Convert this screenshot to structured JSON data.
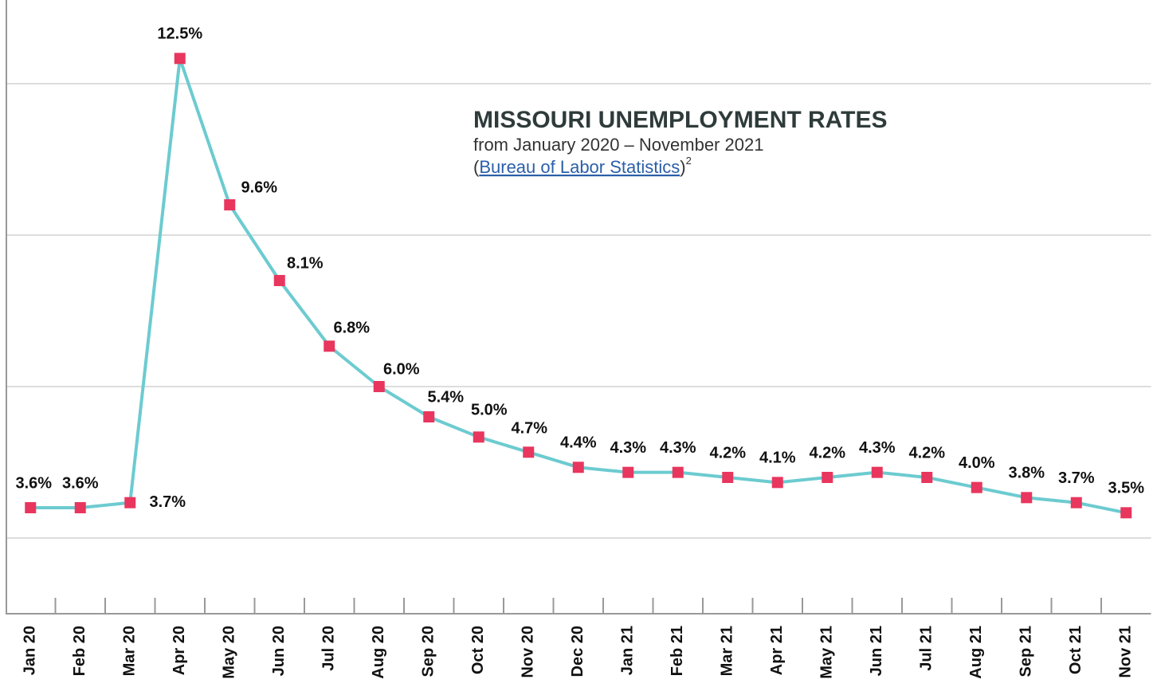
{
  "chart_data": {
    "type": "line",
    "title": "MISSOURI UNEMPLOYMENT RATES",
    "subtitle": "from January 2020 – November 2021",
    "source_before": "(",
    "source": "Bureau of Labor Statistics",
    "source_after": ")",
    "footnote": "2",
    "categories": [
      "Jan 20",
      "Feb 20",
      "Mar 20",
      "Apr 20",
      "May 20",
      "Jun 20",
      "Jul 20",
      "Aug 20",
      "Sep 20",
      "Oct 20",
      "Nov 20",
      "Dec 20",
      "Jan 21",
      "Feb 21",
      "Mar 21",
      "Apr 21",
      "May 21",
      "Jun 21",
      "Jul 21",
      "Aug 21",
      "Sep 21",
      "Oct 21",
      "Nov 21"
    ],
    "values": [
      3.6,
      3.6,
      3.7,
      12.5,
      9.6,
      8.1,
      6.8,
      6.0,
      5.4,
      5.0,
      4.7,
      4.4,
      4.3,
      4.3,
      4.2,
      4.1,
      4.2,
      4.3,
      4.2,
      4.0,
      3.8,
      3.7,
      3.5
    ],
    "value_labels": [
      "3.6%",
      "3.6%",
      "3.7%",
      "12.5%",
      "9.6%",
      "8.1%",
      "6.8%",
      "6.0%",
      "5.4%",
      "5.0%",
      "4.7%",
      "4.4%",
      "4.3%",
      "4.3%",
      "4.2%",
      "4.1%",
      "4.2%",
      "4.3%",
      "4.2%",
      "4.0%",
      "3.8%",
      "3.7%",
      "3.5%"
    ],
    "color": "#6ccbd0",
    "marker_color": "#e8365e",
    "ylim": [
      1.5,
      13.5
    ],
    "yticks": [
      3,
      6,
      9,
      12
    ],
    "grid": true
  }
}
